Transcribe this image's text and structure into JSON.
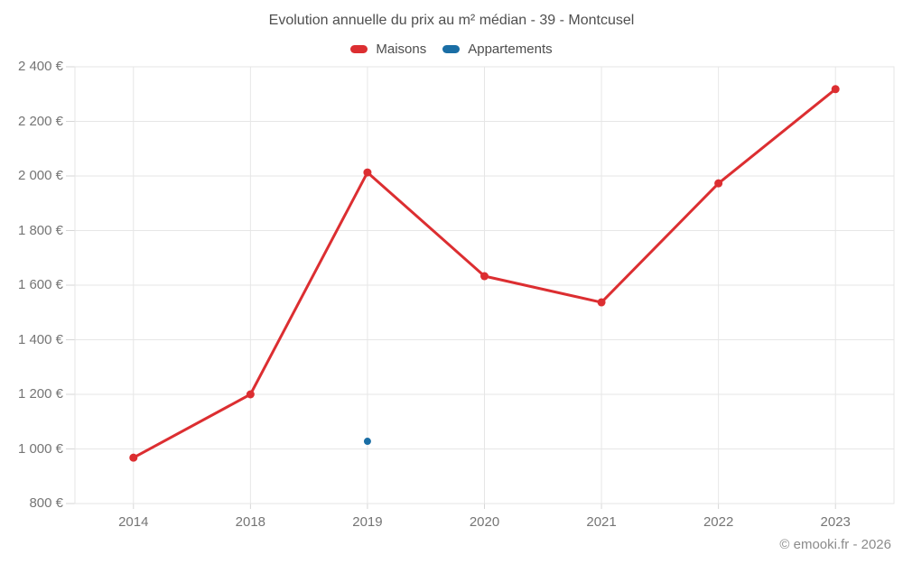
{
  "header": {
    "title": "Evolution annuelle du prix au m² médian - 39 - Montcusel",
    "footer": "© emooki.fr - 2026"
  },
  "legend": {
    "items": [
      {
        "label": "Maisons",
        "color": "#dc2e31"
      },
      {
        "label": "Appartements",
        "color": "#1a6ea5"
      }
    ]
  },
  "chart_data": {
    "type": "line",
    "title": "Evolution annuelle du prix au m² médian - 39 - Montcusel",
    "categories": [
      "2014",
      "2018",
      "2019",
      "2020",
      "2021",
      "2022",
      "2023"
    ],
    "series": [
      {
        "name": "Maisons",
        "color": "#dc2e31",
        "marker_radius": 4.5,
        "values": [
          968,
          1200,
          2013,
          1633,
          1537,
          1973,
          2318
        ]
      },
      {
        "name": "Appartements",
        "color": "#1a6ea5",
        "marker_radius": 4,
        "values": [
          null,
          null,
          1028,
          null,
          null,
          null,
          null
        ]
      }
    ],
    "xlabel": "",
    "ylabel": "",
    "ytick_format": "{value} €",
    "ylim": [
      800,
      2400
    ],
    "ytick_step": 200,
    "grid": true,
    "grid_color": "#e6e6e6",
    "legend_position": "top",
    "source_note": "© emooki.fr - 2026"
  }
}
